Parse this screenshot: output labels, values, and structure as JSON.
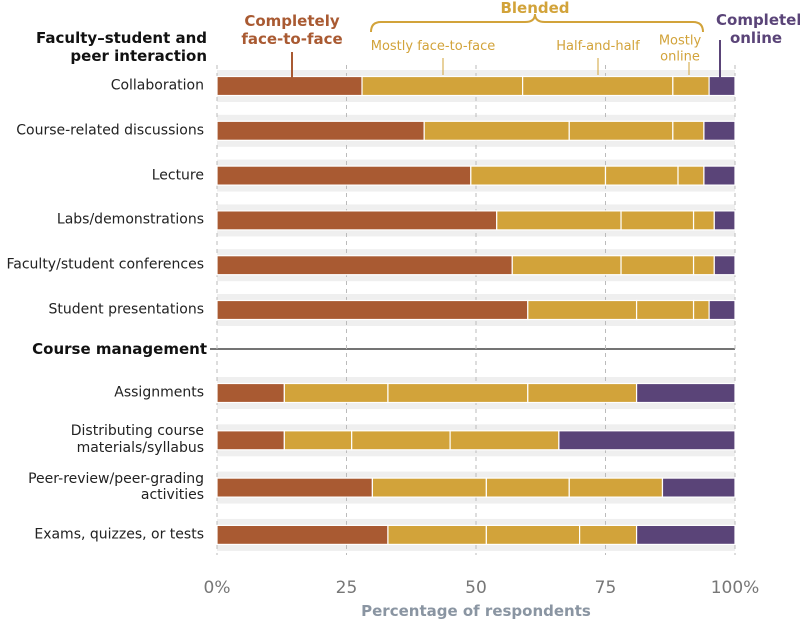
{
  "chart_data": {
    "type": "bar",
    "orientation": "horizontal",
    "stacked": true,
    "sections": [
      {
        "title": "Faculty–student and peer interaction",
        "categories": [
          "Collaboration",
          "Course-related discussions",
          "Lecture",
          "Labs/demonstrations",
          "Faculty/student conferences",
          "Student presentations"
        ]
      },
      {
        "title": "Course management",
        "categories": [
          "Assignments",
          "Distributing course materials/syllabus",
          "Peer-review/peer-grading activities",
          "Exams, quizzes, or tests"
        ]
      }
    ],
    "series": [
      {
        "name": "Completely face-to-face",
        "color": "#a95a32",
        "values": [
          28,
          40,
          49,
          54,
          57,
          60,
          13,
          13,
          30,
          33
        ]
      },
      {
        "name": "Mostly face-to-face",
        "group": "Blended",
        "color": "#d2a33a",
        "values": [
          31,
          28,
          26,
          24,
          21,
          21,
          20,
          13,
          22,
          19
        ]
      },
      {
        "name": "Half-and-half",
        "group": "Blended",
        "color": "#d2a33a",
        "values": [
          29,
          20,
          14,
          14,
          14,
          11,
          27,
          19,
          16,
          18
        ]
      },
      {
        "name": "Mostly online",
        "group": "Blended",
        "color": "#d2a33a",
        "values": [
          7,
          6,
          5,
          4,
          4,
          3,
          21,
          21,
          18,
          11
        ]
      },
      {
        "name": "Completely online",
        "color": "#5a4478",
        "values": [
          5,
          6,
          6,
          4,
          4,
          5,
          19,
          34,
          14,
          19
        ]
      }
    ],
    "xlim": [
      0,
      100
    ],
    "xticks": [
      {
        "value": 0,
        "label": "0%"
      },
      25,
      50,
      75,
      {
        "value": 100,
        "label": "100%"
      }
    ],
    "xlabel": "Percentage of respondents",
    "grid": true
  }
}
